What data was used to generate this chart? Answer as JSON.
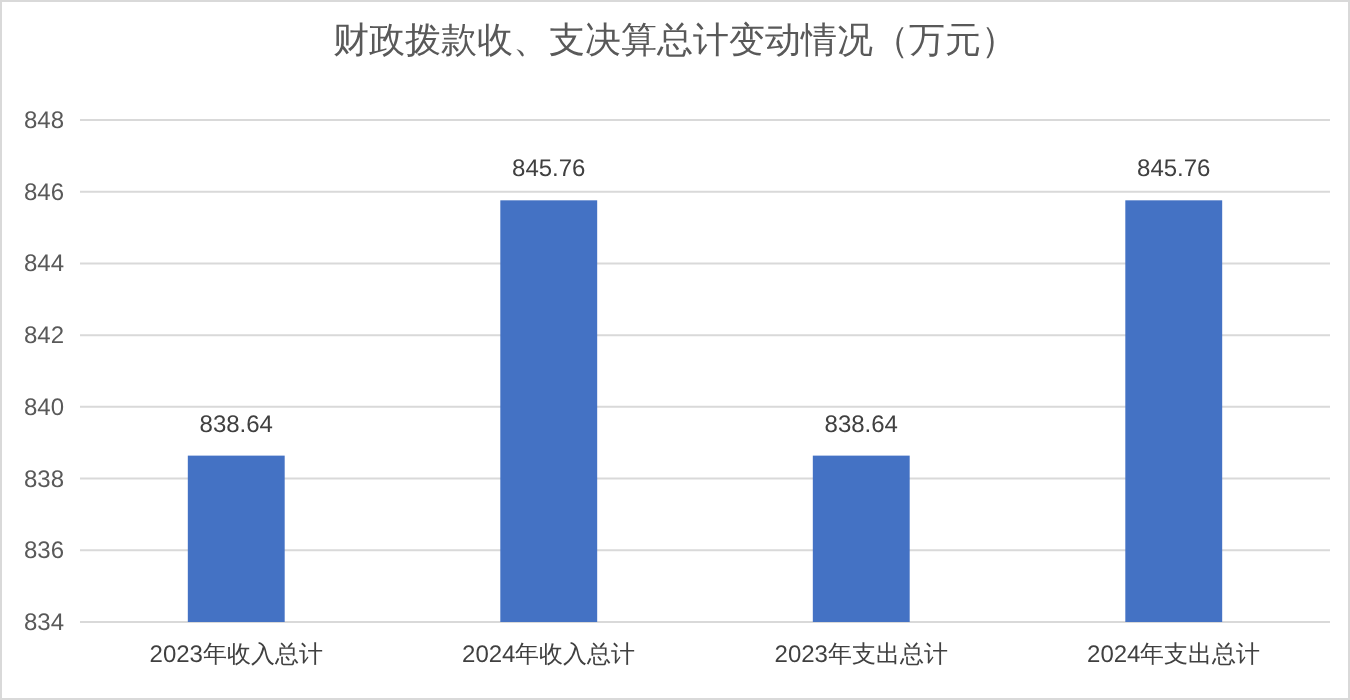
{
  "chart_data": {
    "type": "bar",
    "title": "财政拨款收、支决算总计变动情况（万元）",
    "categories": [
      "2023年收入总计",
      "2024年收入总计",
      "2023年支出总计",
      "2024年支出总计"
    ],
    "values": [
      838.64,
      845.76,
      838.64,
      845.76
    ],
    "color": "#4472c4",
    "ylim": [
      834,
      848
    ],
    "yticks": [
      834,
      836,
      838,
      840,
      842,
      844,
      846,
      848
    ],
    "grid": "y",
    "data_labels": true
  }
}
